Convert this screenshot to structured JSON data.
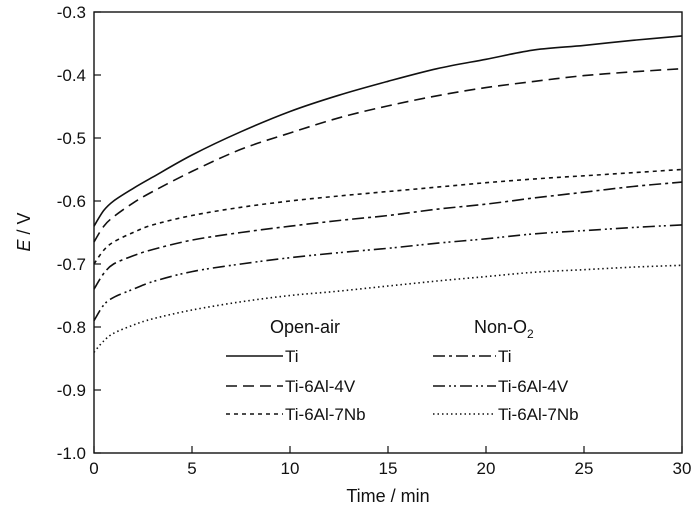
{
  "chart_data": {
    "type": "line",
    "title": "",
    "xlabel": "Time / min",
    "ylabel": {
      "italic": "E",
      "rest": " / V"
    },
    "xlim": [
      0,
      30
    ],
    "ylim": [
      -1.0,
      -0.3
    ],
    "xticks": [
      0,
      5,
      10,
      15,
      20,
      25,
      30
    ],
    "yticks": [
      -1.0,
      -0.9,
      -0.8,
      -0.7,
      -0.6,
      -0.5,
      -0.4,
      -0.3
    ],
    "xtick_labels": [
      "0",
      "5",
      "10",
      "15",
      "20",
      "25",
      "30"
    ],
    "ytick_labels": [
      "-1.0",
      "-0.9",
      "-0.8",
      "-0.7",
      "-0.6",
      "-0.5",
      "-0.4",
      "-0.3"
    ],
    "grid": false,
    "legend": {
      "placement": "lower-right",
      "groups": [
        {
          "title": "Open-air"
        },
        {
          "title_main": "Non-O",
          "title_sub": "2"
        }
      ]
    },
    "x": [
      0,
      0.5,
      1,
      2,
      3,
      5,
      7.5,
      10,
      12.5,
      15,
      17.5,
      20,
      22.5,
      25,
      27.5,
      30
    ],
    "series": [
      {
        "name": "Ti",
        "group": "Open-air",
        "dash": "solid",
        "values": [
          -0.64,
          -0.615,
          -0.6,
          -0.58,
          -0.562,
          -0.527,
          -0.49,
          -0.458,
          -0.432,
          -0.41,
          -0.39,
          -0.375,
          -0.36,
          -0.353,
          -0.345,
          -0.338
        ]
      },
      {
        "name": "Ti-6Al-4V",
        "group": "Open-air",
        "dash": "longdash",
        "values": [
          -0.665,
          -0.64,
          -0.625,
          -0.603,
          -0.585,
          -0.553,
          -0.518,
          -0.492,
          -0.468,
          -0.449,
          -0.433,
          -0.42,
          -0.41,
          -0.401,
          -0.395,
          -0.39
        ]
      },
      {
        "name": "Ti-6Al-7Nb",
        "group": "Open-air",
        "dash": "shortdash",
        "values": [
          -0.7,
          -0.678,
          -0.665,
          -0.65,
          -0.638,
          -0.623,
          -0.61,
          -0.6,
          -0.592,
          -0.585,
          -0.578,
          -0.571,
          -0.565,
          -0.56,
          -0.555,
          -0.55
        ]
      },
      {
        "name": "Ti",
        "group": "Non-O2",
        "dash": "dashdot",
        "values": [
          -0.74,
          -0.715,
          -0.7,
          -0.687,
          -0.677,
          -0.662,
          -0.65,
          -0.64,
          -0.631,
          -0.623,
          -0.613,
          -0.605,
          -0.595,
          -0.586,
          -0.577,
          -0.57
        ]
      },
      {
        "name": "Ti-6Al-4V",
        "group": "Non-O2",
        "dash": "dashdotdot",
        "values": [
          -0.79,
          -0.765,
          -0.753,
          -0.74,
          -0.728,
          -0.712,
          -0.7,
          -0.69,
          -0.682,
          -0.675,
          -0.667,
          -0.66,
          -0.652,
          -0.647,
          -0.642,
          -0.638
        ]
      },
      {
        "name": "Ti-6Al-7Nb",
        "group": "Non-O2",
        "dash": "dotted",
        "values": [
          -0.84,
          -0.822,
          -0.81,
          -0.797,
          -0.787,
          -0.773,
          -0.76,
          -0.75,
          -0.743,
          -0.735,
          -0.727,
          -0.72,
          -0.713,
          -0.709,
          -0.705,
          -0.702
        ]
      }
    ]
  }
}
